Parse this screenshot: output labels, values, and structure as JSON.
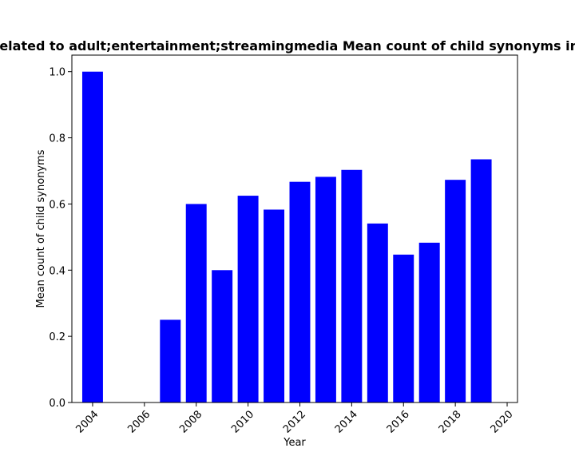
{
  "chart_data": {
    "type": "bar",
    "title": "Related to adult;entertainment;streamingmedia Mean count of child synonyms in",
    "xlabel": "Year",
    "ylabel": "Mean count of child synonyms",
    "x": [
      2004,
      2007,
      2008,
      2009,
      2010,
      2011,
      2012,
      2013,
      2014,
      2015,
      2016,
      2017,
      2018,
      2019
    ],
    "values": [
      1.0,
      0.25,
      0.6,
      0.4,
      0.625,
      0.583,
      0.667,
      0.682,
      0.703,
      0.541,
      0.447,
      0.483,
      0.673,
      0.735
    ],
    "xlim": [
      2003.2,
      2020.4
    ],
    "ylim": [
      0,
      1.05
    ],
    "xticks": [
      2004,
      2006,
      2008,
      2010,
      2012,
      2014,
      2016,
      2018,
      2020
    ],
    "xtick_labels": [
      "2004",
      "2006",
      "2008",
      "2010",
      "2012",
      "2014",
      "2016",
      "2018",
      "2020"
    ],
    "yticks": [
      0.0,
      0.2,
      0.4,
      0.6,
      0.8,
      1.0
    ],
    "ytick_labels": [
      "0.0",
      "0.2",
      "0.4",
      "0.6",
      "0.8",
      "1.0"
    ],
    "bar_color": "#0000ff",
    "grid": false,
    "legend": "none"
  }
}
